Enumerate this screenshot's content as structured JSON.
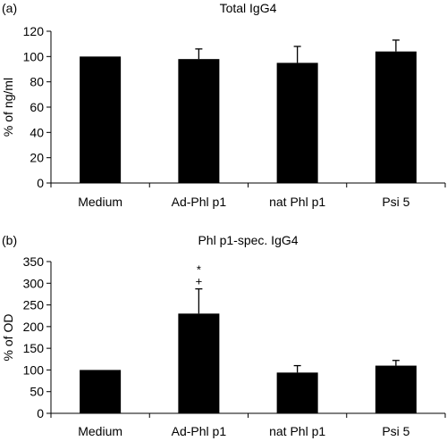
{
  "chart_data": [
    {
      "type": "bar",
      "panel_label": "(a)",
      "title": "Total IgG4",
      "xlabel": "",
      "ylabel": "% of ng/ml",
      "ylim": [
        0,
        120
      ],
      "yticks": [
        0,
        20,
        40,
        60,
        80,
        100,
        120
      ],
      "categories": [
        "Medium",
        "Ad-Phl p1",
        "nat Phl p1",
        "Psi 5"
      ],
      "values": [
        100,
        98,
        95,
        104
      ],
      "errors": [
        0,
        8,
        13,
        9
      ],
      "annotations": [],
      "bar_color": "#000000",
      "grid": false,
      "legend": "none"
    },
    {
      "type": "bar",
      "panel_label": "(b)",
      "title": "Phl p1-spec. IgG4",
      "xlabel": "",
      "ylabel": "% of OD",
      "ylim": [
        0,
        350
      ],
      "yticks": [
        0,
        50,
        100,
        150,
        200,
        250,
        300,
        350
      ],
      "categories": [
        "Medium",
        "Ad-Phl p1",
        "nat Phl p1",
        "Psi 5"
      ],
      "values": [
        100,
        230,
        94,
        110
      ],
      "errors": [
        0,
        57,
        16,
        12
      ],
      "annotations": [
        {
          "category_index": 1,
          "texts": [
            "*",
            "+"
          ]
        }
      ],
      "bar_color": "#000000",
      "grid": false,
      "legend": "none"
    }
  ]
}
